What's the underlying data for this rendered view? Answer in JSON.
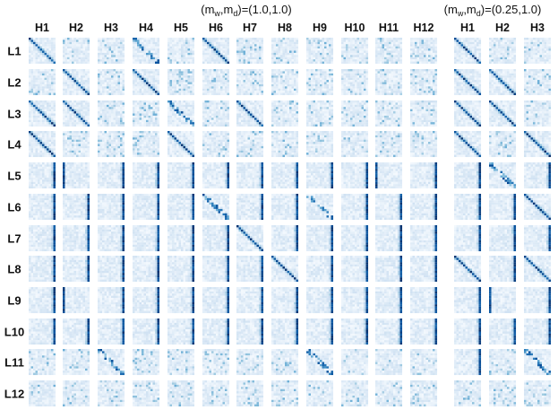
{
  "chart_data": [
    {
      "type": "heatmap",
      "title": "(m_w,m_d)=(1.0,1.0)",
      "title_parts": {
        "prefix": "(m",
        "sub1": "w",
        "mid": ",m",
        "sub2": "d",
        "suffix": ")=(1.0,1.0)"
      },
      "columns": [
        "H1",
        "H2",
        "H3",
        "H4",
        "H5",
        "H6",
        "H7",
        "H8",
        "H9",
        "H10",
        "H11",
        "H12"
      ],
      "rows": [
        "L1",
        "L2",
        "L3",
        "L4",
        "L5",
        "L6",
        "L7",
        "L8",
        "L9",
        "L10",
        "L11",
        "L12"
      ],
      "colormap": "Blues",
      "cell_pattern": [
        [
          "diag",
          "uniform",
          "uniform",
          "diag_w",
          "uniform",
          "diag",
          "uniform",
          "uniform",
          "uniform",
          "uniform",
          "uniform",
          "uniform"
        ],
        [
          "uniform",
          "diag",
          "uniform",
          "diag",
          "uniform",
          "uniform",
          "uniform",
          "uniform",
          "uniform",
          "uniform",
          "uniform",
          "uniform"
        ],
        [
          "diag",
          "diag",
          "uniform",
          "uniform",
          "diag_w",
          "uniform",
          "diag",
          "uniform",
          "uniform",
          "uniform",
          "uniform",
          "uniform"
        ],
        [
          "diag",
          "uniform",
          "uniform",
          "uniform",
          "diag",
          "uniform",
          "uniform",
          "uniform",
          "uniform",
          "uniform",
          "uniform",
          "uniform"
        ],
        [
          "col_right",
          "col_left",
          "col_right",
          "col_right",
          "col_right",
          "col_right",
          "col_right",
          "col_right",
          "col_right",
          "col_right",
          "col_left",
          "col_right"
        ],
        [
          "col_right",
          "col_right",
          "col_right",
          "col_right",
          "col_right",
          "diag_w",
          "col_right",
          "col_right",
          "diag_w",
          "col_right",
          "col_right",
          "col_right"
        ],
        [
          "col_right",
          "col_right",
          "col_right",
          "col_right",
          "col_right",
          "col_right",
          "diag",
          "col_right",
          "col_right",
          "col_right",
          "col_right",
          "col_right"
        ],
        [
          "col_right",
          "col_right",
          "col_right",
          "col_right",
          "col_right",
          "col_right",
          "col_right",
          "diag",
          "col_right",
          "col_right",
          "col_right",
          "col_right"
        ],
        [
          "col_right",
          "col_left",
          "col_right",
          "col_right",
          "col_right",
          "col_right",
          "col_right",
          "col_right",
          "col_right",
          "col_right",
          "col_right",
          "col_right"
        ],
        [
          "col_right",
          "col_right",
          "col_right",
          "col_right",
          "col_right",
          "col_right",
          "col_right",
          "col_right",
          "col_right",
          "col_right",
          "col_right",
          "col_right"
        ],
        [
          "uniform",
          "uniform",
          "diag_w",
          "uniform",
          "uniform",
          "uniform",
          "uniform",
          "uniform",
          "diag_w",
          "uniform",
          "uniform",
          "uniform"
        ],
        [
          "uniform",
          "uniform",
          "uniform",
          "uniform",
          "uniform",
          "uniform",
          "uniform",
          "uniform",
          "uniform",
          "uniform",
          "uniform",
          "uniform"
        ]
      ]
    },
    {
      "type": "heatmap",
      "title": "(m_w,m_d)=(0.25,1.0)",
      "title_parts": {
        "prefix": "(m",
        "sub1": "w",
        "mid": ",m",
        "sub2": "d",
        "suffix": ")=(0.25,1.0)"
      },
      "columns": [
        "H1",
        "H2",
        "H3"
      ],
      "rows": [
        "L1",
        "L2",
        "L3",
        "L4",
        "L5",
        "L6",
        "L7",
        "L8",
        "L9",
        "L10",
        "L11",
        "L12"
      ],
      "colormap": "Blues",
      "cell_pattern": [
        [
          "diag",
          "uniform",
          "uniform"
        ],
        [
          "diag",
          "diag",
          "uniform"
        ],
        [
          "diag",
          "diag",
          "uniform"
        ],
        [
          "diag",
          "uniform",
          "diag"
        ],
        [
          "col_right",
          "diag_w",
          "col_right"
        ],
        [
          "col_right",
          "col_right",
          "diag"
        ],
        [
          "col_right",
          "col_right",
          "col_right"
        ],
        [
          "diag",
          "col_right",
          "diag"
        ],
        [
          "col_right",
          "col_left",
          "col_right"
        ],
        [
          "col_right",
          "col_right",
          "col_right"
        ],
        [
          "col_right",
          "uniform",
          "diag_w"
        ],
        [
          "uniform",
          "uniform",
          "uniform"
        ]
      ]
    }
  ]
}
